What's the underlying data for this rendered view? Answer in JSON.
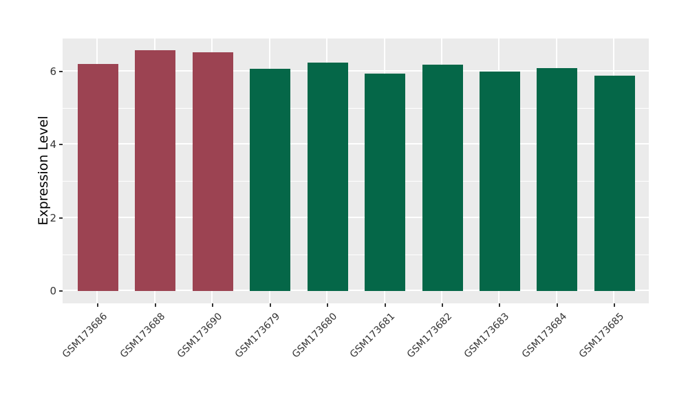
{
  "chart_data": {
    "type": "bar",
    "title": "",
    "xlabel": "",
    "ylabel": "Expression Level",
    "categories": [
      "GSM173686",
      "GSM173688",
      "GSM173690",
      "GSM173679",
      "GSM173680",
      "GSM173681",
      "GSM173682",
      "GSM173683",
      "GSM173684",
      "GSM173685"
    ],
    "values": [
      6.21,
      6.58,
      6.52,
      6.08,
      6.25,
      5.94,
      6.19,
      5.99,
      6.1,
      5.88
    ],
    "bar_colors": [
      "#9C4352",
      "#9C4352",
      "#9C4352",
      "#056748",
      "#056748",
      "#056748",
      "#056748",
      "#056748",
      "#056748",
      "#056748"
    ],
    "groups": [
      {
        "name": "red-group",
        "color": "#9C4352",
        "members": [
          "GSM173686",
          "GSM173688",
          "GSM173690"
        ]
      },
      {
        "name": "green-group",
        "color": "#056748",
        "members": [
          "GSM173679",
          "GSM173680",
          "GSM173681",
          "GSM173682",
          "GSM173683",
          "GSM173684",
          "GSM173685"
        ]
      }
    ],
    "yticks": [
      0,
      2,
      4,
      6
    ],
    "ytick_labels": [
      "0",
      "2",
      "4",
      "6"
    ],
    "yticks_minor": [
      1,
      3,
      5
    ],
    "ylim": [
      -0.34,
      6.9
    ],
    "x_label_rotation_deg": 45,
    "legend": "none",
    "grid": "major and minor horizontal white lines; vertical white line at each category",
    "panel_bg_color": "#EBEBEB",
    "grid_color": "#FFFFFF",
    "axis_text_color": "#333333",
    "figure_bg_color": "#FFFFFF"
  }
}
